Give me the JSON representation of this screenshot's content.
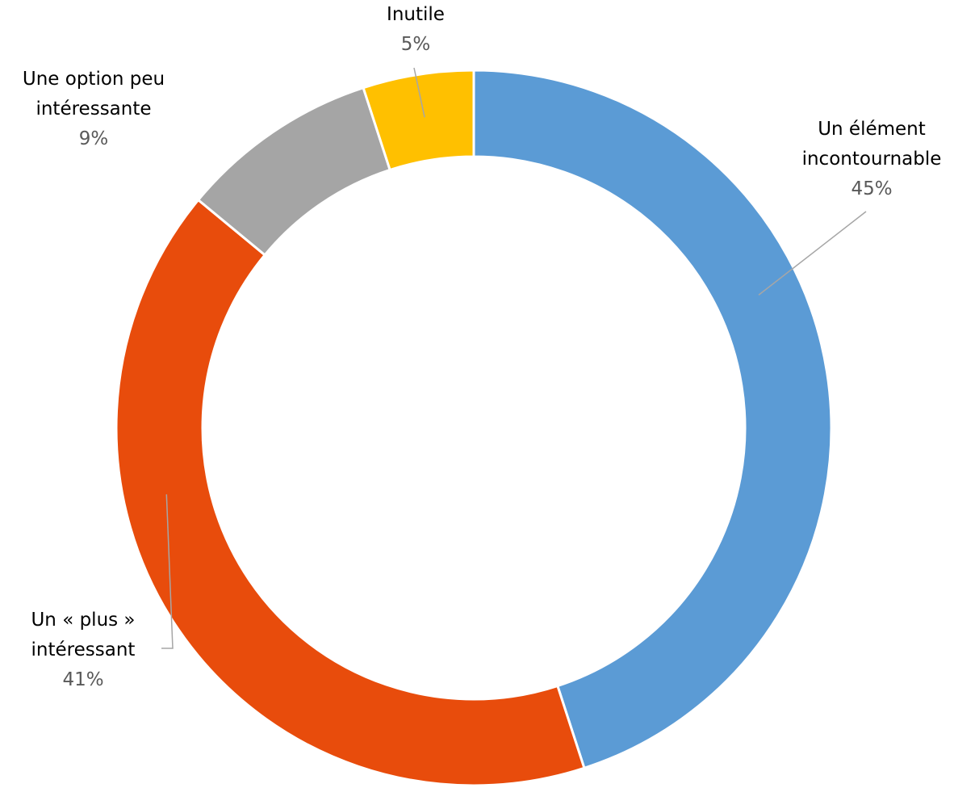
{
  "chart_data": {
    "type": "donut",
    "slices": [
      {
        "name_lines": [
          "Un élément",
          "incontournable"
        ],
        "value": 45,
        "value_label": "45%",
        "color": "#5b9bd5"
      },
      {
        "name_lines": [
          "Un « plus »",
          "intéressant"
        ],
        "value": 41,
        "value_label": "41%",
        "color": "#e84c0c"
      },
      {
        "name_lines": [
          "Une option peu",
          "intéressante"
        ],
        "value": 9,
        "value_label": "9%",
        "color": "#a5a5a5"
      },
      {
        "name_lines": [
          "Inutile"
        ],
        "value": 5,
        "value_label": "5%",
        "color": "#ffc000"
      }
    ],
    "start_angle_deg": 0,
    "direction": "clockwise",
    "slice_border_color": "#ffffff",
    "leader_line_color": "#a6a6a6"
  }
}
